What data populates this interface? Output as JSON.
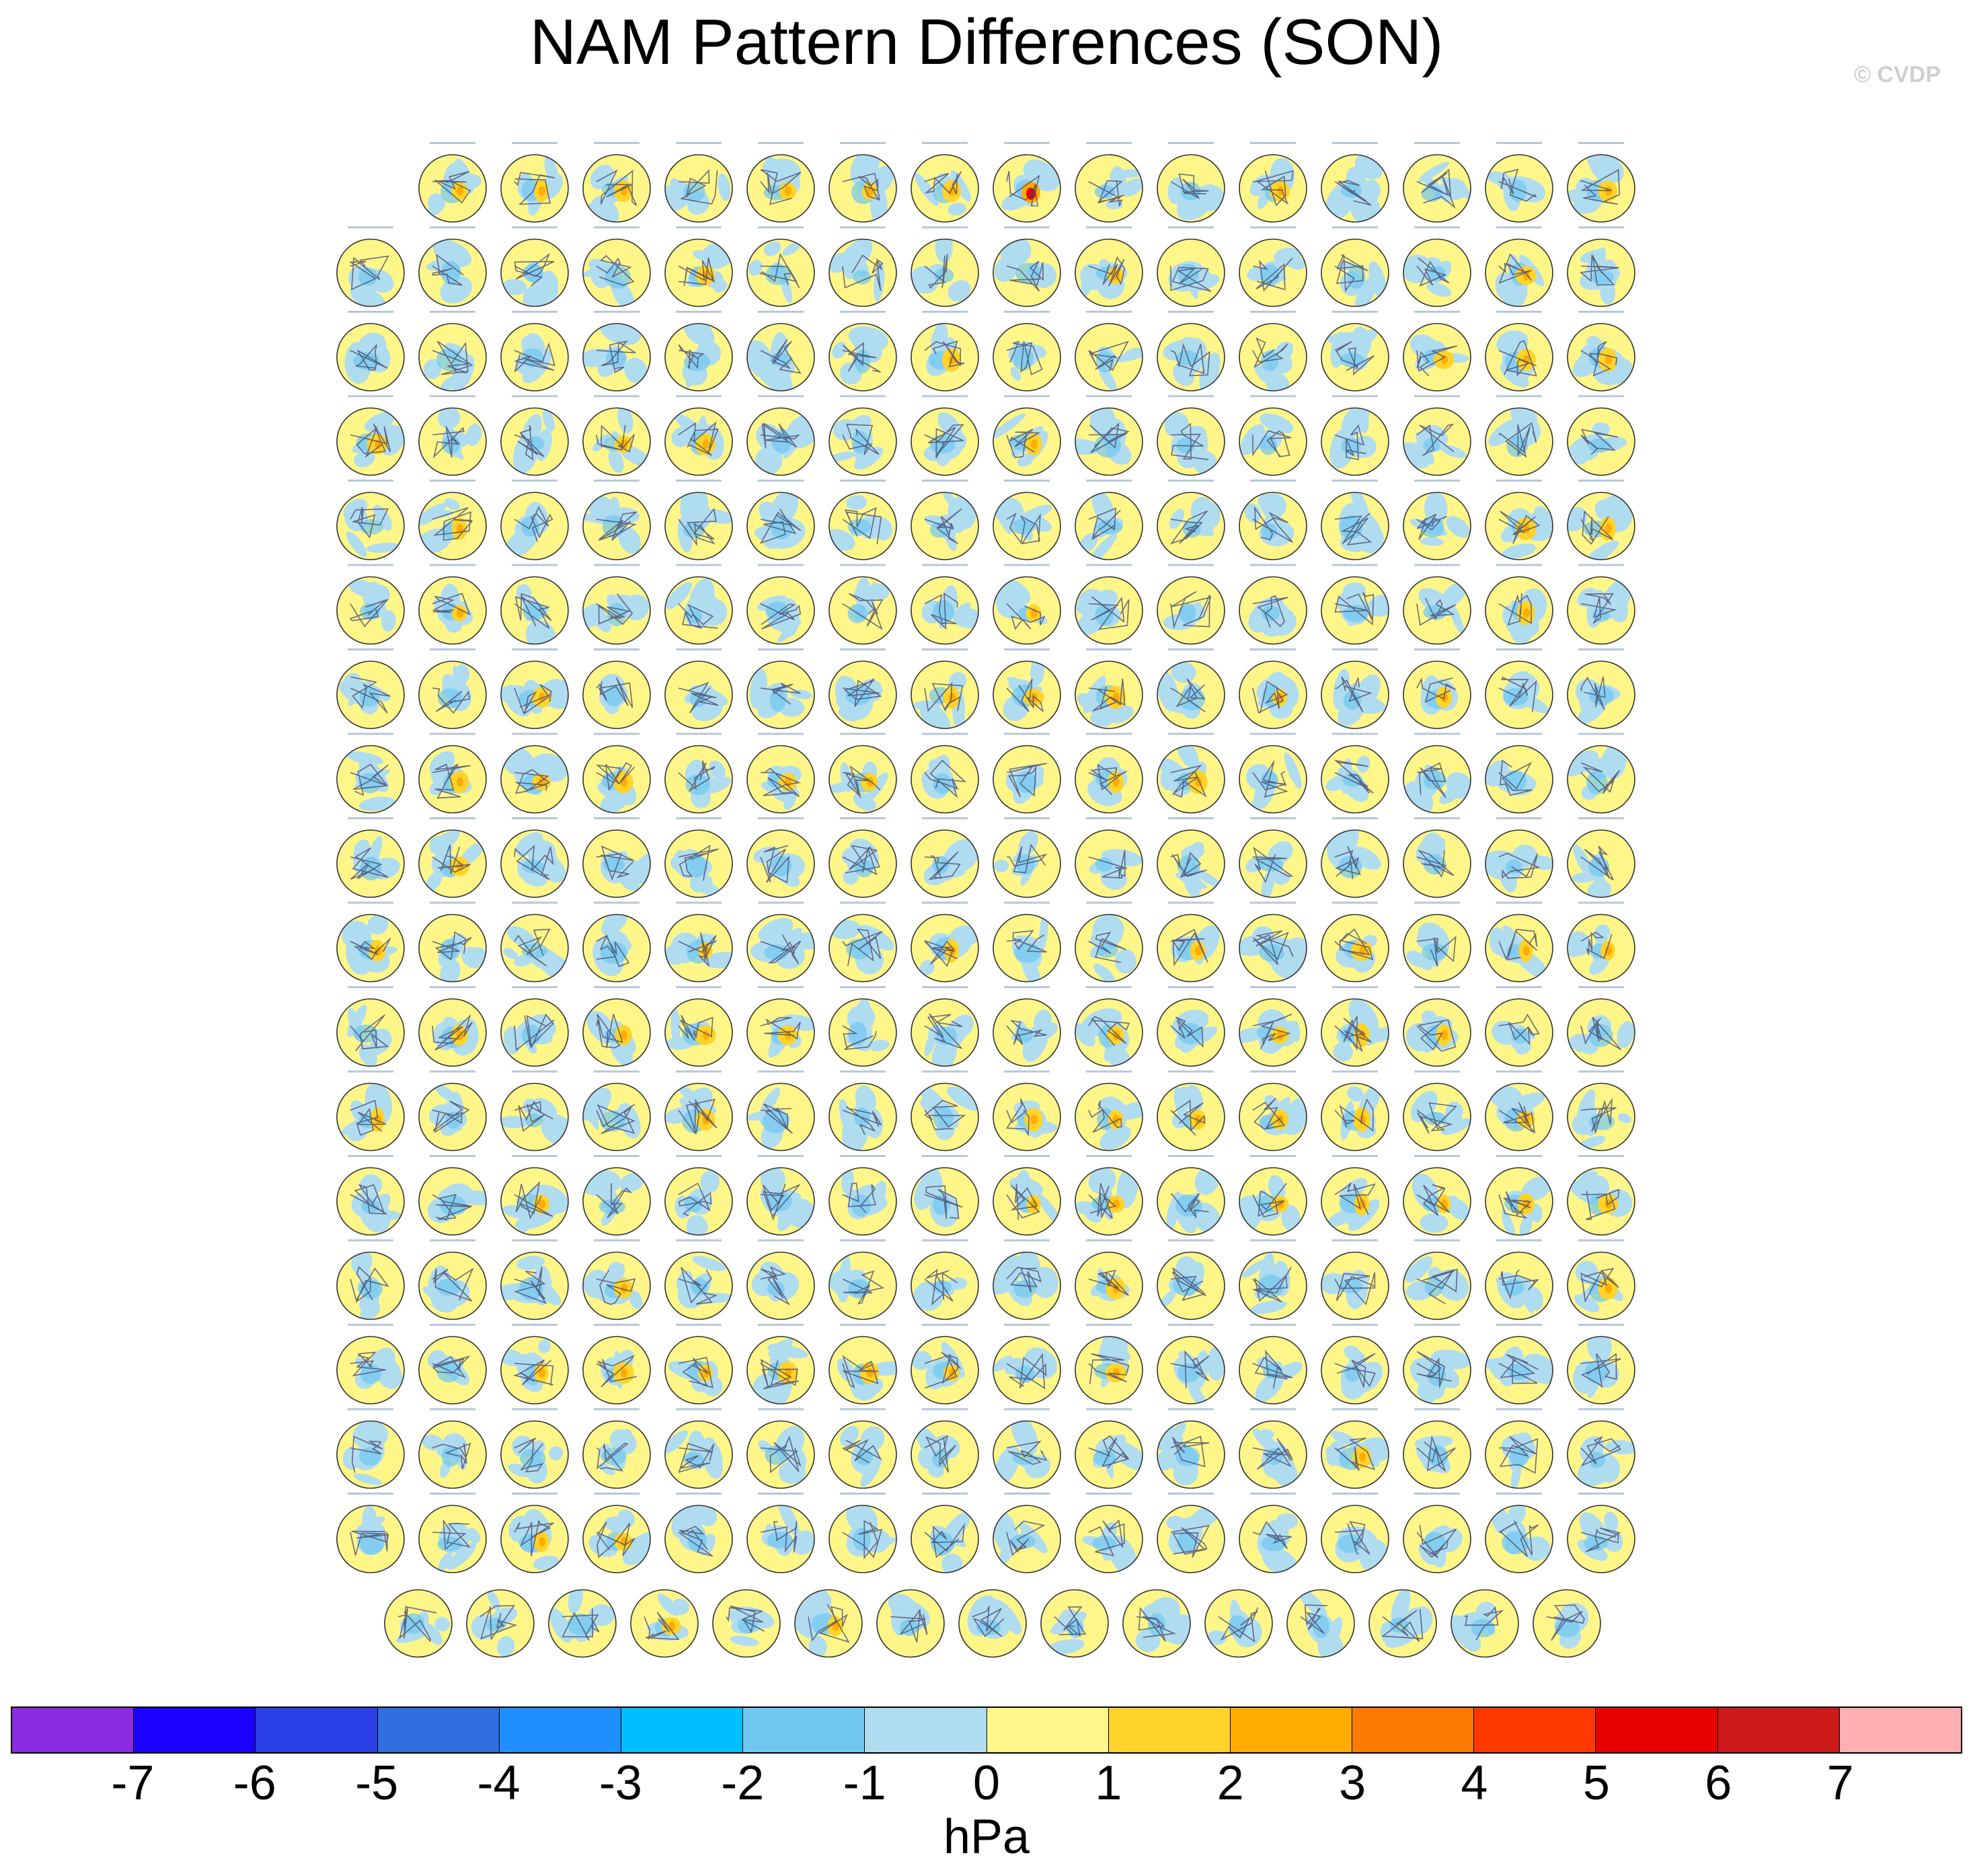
{
  "title": "NAM Pattern Differences (SON)",
  "copyright": "© CVDP",
  "chart_data": {
    "type": "heatmap",
    "description_type": "small-multiples polar stereographic maps",
    "title": "NAM Pattern Differences (SON)",
    "panel_rows": [
      15,
      16,
      16,
      16,
      16,
      16,
      16,
      16,
      16,
      16,
      16,
      16,
      16,
      16,
      16,
      16,
      16,
      15
    ],
    "colorbar": {
      "unit": "hPa",
      "tick_labels": [
        "-7",
        "-6",
        "-5",
        "-4",
        "-3",
        "-2",
        "-1",
        "0",
        "1",
        "2",
        "3",
        "4",
        "5",
        "6",
        "7"
      ],
      "colors": [
        "#8a2be2",
        "#1a00ff",
        "#2a3fe5",
        "#2f6fe0",
        "#1f8fff",
        "#00bfff",
        "#70c8f0",
        "#b0dcf0",
        "#fff68a",
        "#ffd32a",
        "#ffab00",
        "#ff7a00",
        "#ff3a00",
        "#e80000",
        "#cc1a1a",
        "#ffb0b0"
      ]
    },
    "legend_placement": "bottom",
    "grid": false
  }
}
